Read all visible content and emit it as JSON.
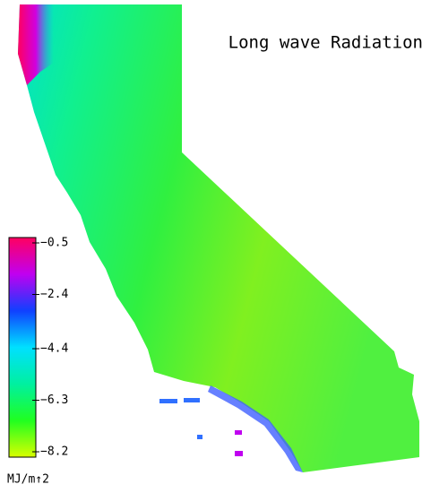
{
  "title": "Long wave Radiation",
  "colorbar": {
    "range": [
      -8.2,
      -0.5
    ],
    "ticks": [
      {
        "value": -0.5,
        "label": "−0.5"
      },
      {
        "value": -2.4,
        "label": "−2.4"
      },
      {
        "value": -4.4,
        "label": "−4.4"
      },
      {
        "value": -6.3,
        "label": "−6.3"
      },
      {
        "value": -8.2,
        "label": "−8.2"
      }
    ],
    "colors": [
      "#d8ff00",
      "#20ff20",
      "#00f0a0",
      "#00e0ff",
      "#1040ff",
      "#c000f0",
      "#ff0060"
    ],
    "unit": "MJ/m↑2"
  }
}
